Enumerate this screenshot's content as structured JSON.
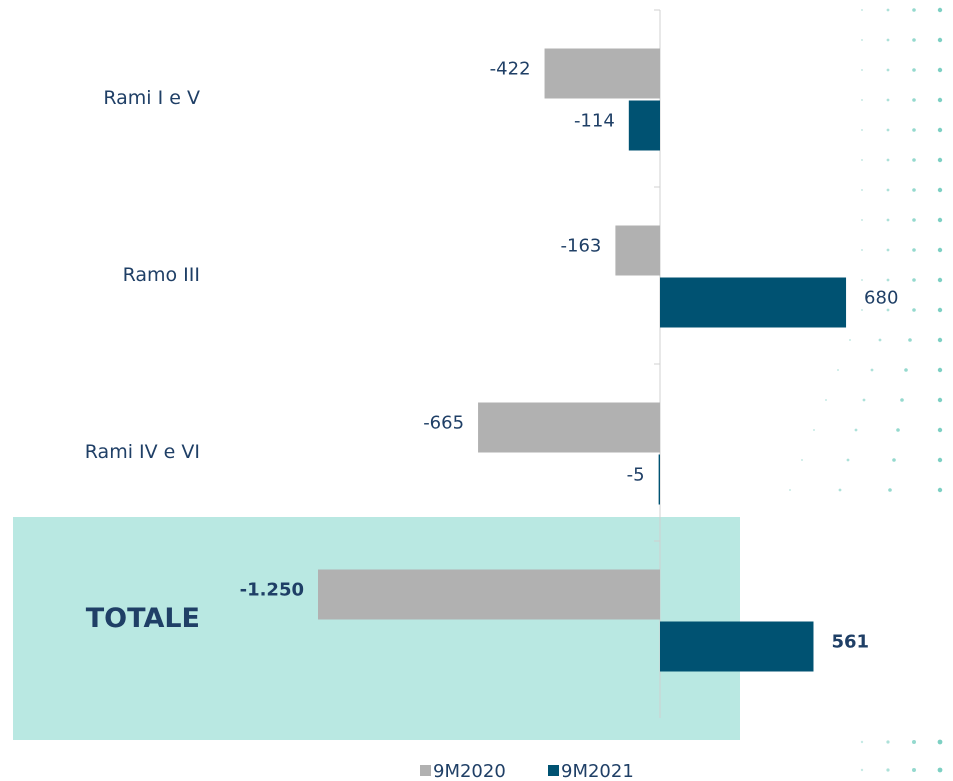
{
  "chart_data": {
    "type": "bar",
    "orientation": "horizontal",
    "categories": [
      "Rami I e V",
      "Ramo III",
      "Rami IV e VI",
      "TOTALE"
    ],
    "series": [
      {
        "name": "9M2020",
        "color": "#b1b1b1",
        "values": [
          -422,
          -163,
          -665,
          -1250
        ],
        "value_labels": [
          "-422",
          "-163",
          "-665",
          "-1.250"
        ]
      },
      {
        "name": "9M2021",
        "color": "#005272",
        "values": [
          -114,
          680,
          -5,
          561
        ]
      }
    ],
    "legend": "bottom"
  }
}
